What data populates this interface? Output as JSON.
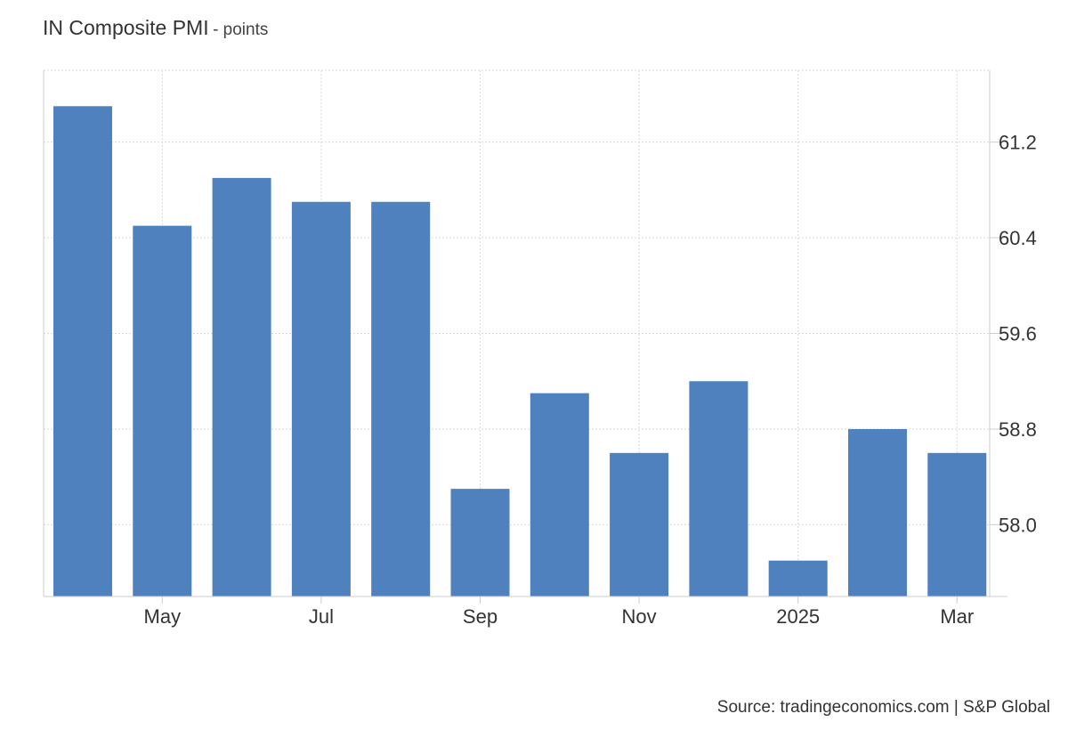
{
  "header": {
    "title": "IN Composite PMI",
    "unit_suffix": "- points"
  },
  "footer": {
    "source": "Source: tradingeconomics.com | S&P Global"
  },
  "colors": {
    "bar": "#4e81bd",
    "grid": "#d9d9d9",
    "axis": "#cccccc",
    "text": "#333333"
  },
  "chart_data": {
    "type": "bar",
    "title": "IN Composite PMI",
    "subtitle": "- points",
    "categories": [
      "Apr 2024",
      "May 2024",
      "Jun 2024",
      "Jul 2024",
      "Aug 2024",
      "Sep 2024",
      "Oct 2024",
      "Nov 2024",
      "Dec 2024",
      "Jan 2025",
      "Feb 2025",
      "Mar 2025"
    ],
    "series": [
      {
        "values": [
          61.5,
          60.5,
          60.9,
          60.7,
          60.7,
          58.3,
          59.1,
          58.6,
          59.2,
          57.7,
          58.8,
          58.6
        ]
      }
    ],
    "x_tick_labels": [
      "May",
      "Jul",
      "Sep",
      "Nov",
      "2025",
      "Mar"
    ],
    "x_tick_categories": [
      "May 2024",
      "Jul 2024",
      "Sep 2024",
      "Nov 2024",
      "Jan 2025",
      "Mar 2025"
    ],
    "y_ticks": [
      61.2,
      60.4,
      59.6,
      58.8,
      58.0
    ],
    "y_tick_labels": [
      "61.2",
      "60.4",
      "59.6",
      "58.8",
      "58.0"
    ],
    "ylim": [
      57.4,
      61.8
    ],
    "y_axis_side": "right",
    "grid": true,
    "legend": "none",
    "source": "Source: tradingeconomics.com | S&P Global"
  }
}
